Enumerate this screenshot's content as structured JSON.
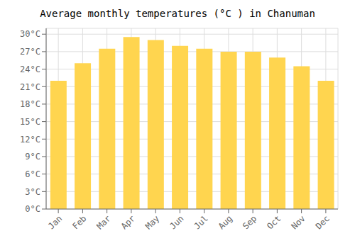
{
  "chart_data": {
    "type": "bar",
    "title": "Average monthly temperatures (°C ) in Chanuman",
    "categories": [
      "Jan",
      "Feb",
      "Mar",
      "Apr",
      "May",
      "Jun",
      "Jul",
      "Aug",
      "Sep",
      "Oct",
      "Nov",
      "Dec"
    ],
    "values": [
      22.0,
      25.0,
      27.5,
      29.5,
      29.0,
      28.0,
      27.5,
      27.0,
      27.0,
      26.0,
      24.5,
      22.0
    ],
    "color": "#FFD54F",
    "ylim": [
      0,
      31
    ],
    "yticks": [
      {
        "value": 0,
        "label": "0°C"
      },
      {
        "value": 3,
        "label": "3°C"
      },
      {
        "value": 6,
        "label": "6°C"
      },
      {
        "value": 9,
        "label": "9°C"
      },
      {
        "value": 12,
        "label": "12°C"
      },
      {
        "value": 15,
        "label": "15°C"
      },
      {
        "value": 18,
        "label": "18°C"
      },
      {
        "value": 21,
        "label": "21°C"
      },
      {
        "value": 24,
        "label": "24°C"
      },
      {
        "value": 27,
        "label": "27°C"
      },
      {
        "value": 30,
        "label": "30°C"
      }
    ],
    "grid": true
  }
}
